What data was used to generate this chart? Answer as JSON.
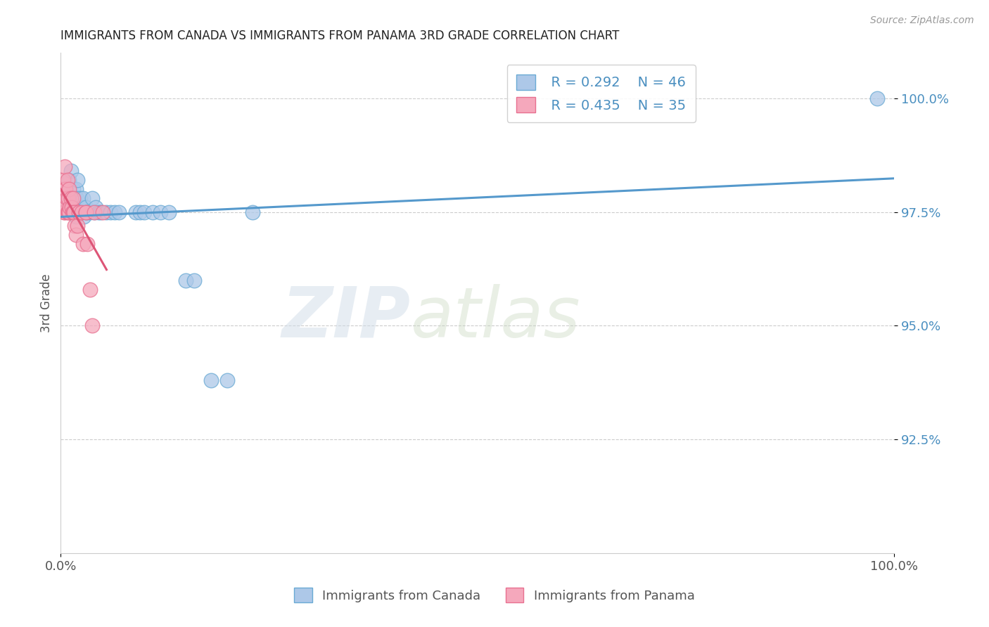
{
  "title": "IMMIGRANTS FROM CANADA VS IMMIGRANTS FROM PANAMA 3RD GRADE CORRELATION CHART",
  "source": "Source: ZipAtlas.com",
  "ylabel": "3rd Grade",
  "xlim": [
    0.0,
    1.0
  ],
  "ylim": [
    0.9,
    1.01
  ],
  "yticks": [
    0.925,
    0.95,
    0.975,
    1.0
  ],
  "ytick_labels": [
    "92.5%",
    "95.0%",
    "97.5%",
    "100.0%"
  ],
  "xticks": [
    0.0,
    1.0
  ],
  "xtick_labels": [
    "0.0%",
    "100.0%"
  ],
  "legend_R_canada": "R = 0.292",
  "legend_N_canada": "N = 46",
  "legend_R_panama": "R = 0.435",
  "legend_N_panama": "N = 35",
  "canada_color": "#adc8e8",
  "panama_color": "#f5a8bc",
  "canada_edge_color": "#6aaad4",
  "panama_edge_color": "#e87090",
  "canada_line_color": "#5599cc",
  "panama_line_color": "#dd5577",
  "watermark_color": "#e0eaf4",
  "background_color": "#ffffff",
  "grid_color": "#cccccc",
  "title_color": "#222222",
  "source_color": "#999999",
  "ylabel_color": "#555555",
  "tick_color": "#4a8fc0",
  "legend_text_color": "#4a8fc0",
  "bottom_legend_color": "#555555",
  "canada_x": [
    0.005,
    0.008,
    0.01,
    0.01,
    0.012,
    0.013,
    0.015,
    0.015,
    0.016,
    0.017,
    0.018,
    0.018,
    0.019,
    0.02,
    0.02,
    0.022,
    0.023,
    0.024,
    0.025,
    0.026,
    0.027,
    0.028,
    0.03,
    0.032,
    0.035,
    0.038,
    0.04,
    0.042,
    0.045,
    0.048,
    0.055,
    0.06,
    0.065,
    0.07,
    0.09,
    0.095,
    0.1,
    0.11,
    0.12,
    0.13,
    0.15,
    0.16,
    0.18,
    0.2,
    0.23,
    0.98
  ],
  "canada_y": [
    0.98,
    0.978,
    0.982,
    0.976,
    0.984,
    0.975,
    0.98,
    0.976,
    0.975,
    0.978,
    0.974,
    0.98,
    0.978,
    0.976,
    0.982,
    0.975,
    0.978,
    0.975,
    0.975,
    0.976,
    0.978,
    0.974,
    0.976,
    0.975,
    0.975,
    0.978,
    0.975,
    0.976,
    0.975,
    0.975,
    0.975,
    0.975,
    0.975,
    0.975,
    0.975,
    0.975,
    0.975,
    0.975,
    0.975,
    0.975,
    0.96,
    0.96,
    0.938,
    0.938,
    0.975,
    1.0
  ],
  "panama_x": [
    0.003,
    0.003,
    0.004,
    0.005,
    0.005,
    0.005,
    0.006,
    0.006,
    0.007,
    0.008,
    0.008,
    0.009,
    0.009,
    0.01,
    0.01,
    0.011,
    0.012,
    0.013,
    0.014,
    0.015,
    0.015,
    0.016,
    0.017,
    0.018,
    0.02,
    0.022,
    0.025,
    0.027,
    0.03,
    0.03,
    0.032,
    0.035,
    0.038,
    0.04,
    0.05
  ],
  "panama_y": [
    0.982,
    0.978,
    0.975,
    0.985,
    0.98,
    0.975,
    0.98,
    0.976,
    0.978,
    0.975,
    0.982,
    0.978,
    0.975,
    0.98,
    0.975,
    0.976,
    0.978,
    0.976,
    0.975,
    0.975,
    0.978,
    0.975,
    0.972,
    0.97,
    0.972,
    0.975,
    0.975,
    0.968,
    0.975,
    0.975,
    0.968,
    0.958,
    0.95,
    0.975,
    0.975
  ]
}
